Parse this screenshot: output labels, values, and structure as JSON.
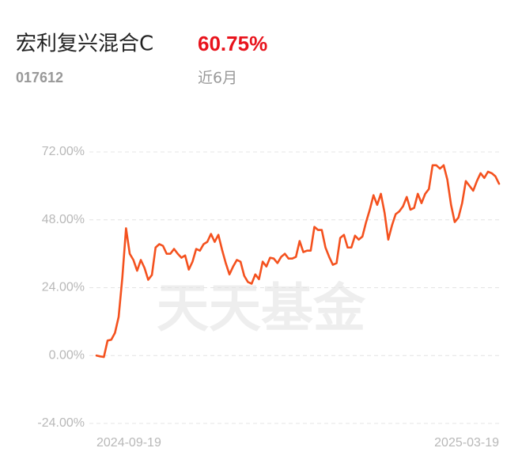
{
  "header": {
    "title": "宏利复兴混合C",
    "code": "017612",
    "return": "60.75%",
    "period": "近6月"
  },
  "chart_data": {
    "type": "line",
    "watermark": "天天基金",
    "categories": [
      "2024-09-19",
      null,
      null,
      null,
      null,
      null,
      null,
      null,
      null,
      null,
      null,
      null,
      null,
      null,
      null,
      null,
      null,
      null,
      null,
      null,
      null,
      null,
      null,
      null,
      null,
      null,
      null,
      null,
      null,
      null,
      null,
      null,
      null,
      null,
      null,
      null,
      null,
      null,
      null,
      null,
      null,
      null,
      null,
      null,
      null,
      null,
      null,
      null,
      null,
      null,
      null,
      null,
      null,
      null,
      null,
      null,
      null,
      null,
      null,
      null,
      null,
      null,
      null,
      null,
      null,
      null,
      null,
      null,
      null,
      null,
      null,
      null,
      null,
      null,
      null,
      null,
      null,
      null,
      null,
      null,
      null,
      null,
      null,
      null,
      null,
      null,
      null,
      null,
      null,
      null,
      null,
      null,
      null,
      null,
      null,
      null,
      null,
      null,
      null,
      null,
      null,
      null,
      null,
      null,
      null,
      null,
      null,
      null,
      null,
      "2025-03-19"
    ],
    "series": [
      {
        "color": "#f4511e",
        "values": [
          0,
          -0.3,
          -0.5,
          5.3,
          5.6,
          8,
          13.7,
          27.6,
          45,
          36,
          33.8,
          30,
          33.8,
          31,
          26.8,
          28.5,
          38.2,
          39.4,
          38.8,
          36,
          36,
          37.7,
          36,
          34.6,
          35.4,
          30.4,
          33.2,
          37.7,
          37.1,
          39.4,
          40.2,
          43,
          40.2,
          42.7,
          37.4,
          32.7,
          28.7,
          31.5,
          33.8,
          33.2,
          28.2,
          26,
          25.4,
          28.7,
          27,
          33.2,
          31.5,
          34.6,
          34.3,
          32.7,
          34.9,
          36,
          34.3,
          34.3,
          34.9,
          40.5,
          36.6,
          37.1,
          37.1,
          45.5,
          44.4,
          44.4,
          38.2,
          34.9,
          32.1,
          32.7,
          41.6,
          42.7,
          38.2,
          38.2,
          42.4,
          41,
          42.1,
          47.2,
          51.6,
          56.7,
          53.3,
          57.2,
          50.5,
          41,
          46,
          50,
          51,
          52.8,
          56.1,
          51.6,
          52.2,
          57.2,
          53.9,
          57.2,
          58.9,
          67.3,
          67.3,
          66.1,
          67.3,
          62.2,
          53.3,
          47.2,
          48.8,
          53.9,
          61.7,
          60,
          58.3,
          61.7,
          64.5,
          62.8,
          65,
          64.5,
          63.4,
          60.75
        ]
      }
    ],
    "ylim": [
      -24,
      72
    ],
    "yticks": [
      {
        "value": -24,
        "label": "-24.00%"
      },
      {
        "value": 0,
        "label": "0.00%"
      },
      {
        "value": 24,
        "label": "24.00%"
      },
      {
        "value": 48,
        "label": "48.00%"
      },
      {
        "value": 72,
        "label": "72.00%"
      }
    ],
    "grid": true
  }
}
